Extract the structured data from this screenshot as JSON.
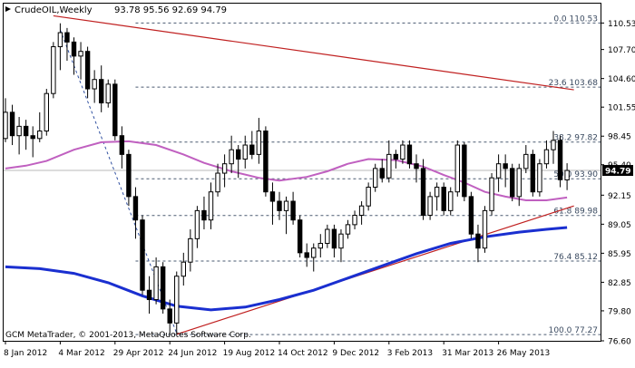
{
  "window": {
    "symbol_label": "CrudeOIL,Weekly",
    "ohlc_readout": "93.78 95.56 92.69 94.79",
    "copyright": "GCM MetaTrader, © 2001-2013, MetaQuotes Software Corp."
  },
  "colors": {
    "background": "#ffffff",
    "candle": "#000000",
    "ma_fast": "#c060c0",
    "ma_slow": "#1a2fd0",
    "trendline": "#c02020",
    "fib_level": "#4a5a70",
    "current_price_bg": "#000000",
    "current_price_fg": "#ffffff"
  },
  "chart_data": {
    "type": "candlestick",
    "symbol": "CrudeOIL",
    "timeframe": "Weekly",
    "y_range": [
      76.6,
      112.6
    ],
    "x_labels": [
      {
        "text": "8 Jan 2012",
        "index": 0
      },
      {
        "text": "4 Mar 2012",
        "index": 8
      },
      {
        "text": "29 Apr 2012",
        "index": 16
      },
      {
        "text": "24 Jun 2012",
        "index": 24
      },
      {
        "text": "19 Aug 2012",
        "index": 32
      },
      {
        "text": "14 Oct 2012",
        "index": 40
      },
      {
        "text": "9 Dec 2012",
        "index": 48
      },
      {
        "text": "3 Feb 2013",
        "index": 56
      },
      {
        "text": "31 Mar 2013",
        "index": 64
      },
      {
        "text": "26 May 2013",
        "index": 72
      }
    ],
    "y_ticks": [
      "110.53",
      "107.70",
      "104.60",
      "101.55",
      "98.45",
      "95.40",
      "92.15",
      "89.05",
      "85.95",
      "82.85",
      "79.80",
      "76.60"
    ],
    "current_price": "94.79",
    "fib_levels": [
      {
        "label": "0.0 110.53",
        "value": 110.53
      },
      {
        "label": "23.6 103.68",
        "value": 103.68
      },
      {
        "label": "38.2 97.82",
        "value": 97.82
      },
      {
        "label": "50.0 93.90",
        "value": 93.9
      },
      {
        "label": "61.8 89.98",
        "value": 89.98
      },
      {
        "label": "76.4 85.12",
        "value": 85.12
      },
      {
        "label": "100.0 77.27",
        "value": 77.27
      }
    ],
    "candles": [
      {
        "o": 98.2,
        "h": 102.5,
        "l": 97.8,
        "c": 101.0
      },
      {
        "o": 101.0,
        "h": 101.8,
        "l": 97.5,
        "c": 98.5
      },
      {
        "o": 98.5,
        "h": 100.5,
        "l": 96.5,
        "c": 99.5
      },
      {
        "o": 99.5,
        "h": 100.2,
        "l": 97.0,
        "c": 98.5
      },
      {
        "o": 98.5,
        "h": 99.5,
        "l": 96.2,
        "c": 98.2
      },
      {
        "o": 98.2,
        "h": 101.0,
        "l": 97.8,
        "c": 99.0
      },
      {
        "o": 99.0,
        "h": 103.5,
        "l": 98.5,
        "c": 103.0
      },
      {
        "o": 103.0,
        "h": 108.5,
        "l": 102.5,
        "c": 108.0
      },
      {
        "o": 108.0,
        "h": 110.5,
        "l": 105.5,
        "c": 109.5
      },
      {
        "o": 109.5,
        "h": 110.0,
        "l": 106.5,
        "c": 108.5
      },
      {
        "o": 108.5,
        "h": 109.0,
        "l": 105.0,
        "c": 107.0
      },
      {
        "o": 107.0,
        "h": 108.5,
        "l": 104.5,
        "c": 107.5
      },
      {
        "o": 107.5,
        "h": 108.0,
        "l": 102.5,
        "c": 103.5
      },
      {
        "o": 103.5,
        "h": 105.5,
        "l": 102.0,
        "c": 104.5
      },
      {
        "o": 104.5,
        "h": 106.0,
        "l": 101.0,
        "c": 102.0
      },
      {
        "o": 102.0,
        "h": 104.5,
        "l": 101.5,
        "c": 104.0
      },
      {
        "o": 104.0,
        "h": 104.5,
        "l": 98.0,
        "c": 98.5
      },
      {
        "o": 98.5,
        "h": 99.5,
        "l": 95.0,
        "c": 96.5
      },
      {
        "o": 96.5,
        "h": 97.0,
        "l": 91.0,
        "c": 92.0
      },
      {
        "o": 92.0,
        "h": 93.0,
        "l": 87.5,
        "c": 89.5
      },
      {
        "o": 89.5,
        "h": 90.0,
        "l": 81.5,
        "c": 82.0
      },
      {
        "o": 82.0,
        "h": 83.5,
        "l": 79.5,
        "c": 81.0
      },
      {
        "o": 81.0,
        "h": 85.5,
        "l": 80.5,
        "c": 84.5
      },
      {
        "o": 84.5,
        "h": 85.0,
        "l": 79.5,
        "c": 80.0
      },
      {
        "o": 80.0,
        "h": 81.0,
        "l": 77.3,
        "c": 78.5
      },
      {
        "o": 78.5,
        "h": 84.0,
        "l": 77.5,
        "c": 83.5
      },
      {
        "o": 83.5,
        "h": 86.0,
        "l": 82.5,
        "c": 85.0
      },
      {
        "o": 85.0,
        "h": 88.5,
        "l": 84.0,
        "c": 87.5
      },
      {
        "o": 87.5,
        "h": 91.0,
        "l": 86.5,
        "c": 90.5
      },
      {
        "o": 90.5,
        "h": 92.0,
        "l": 88.5,
        "c": 89.5
      },
      {
        "o": 89.5,
        "h": 93.5,
        "l": 88.5,
        "c": 92.5
      },
      {
        "o": 92.5,
        "h": 95.5,
        "l": 92.0,
        "c": 94.5
      },
      {
        "o": 94.5,
        "h": 96.5,
        "l": 93.0,
        "c": 95.5
      },
      {
        "o": 95.5,
        "h": 98.5,
        "l": 94.5,
        "c": 97.0
      },
      {
        "o": 97.0,
        "h": 97.5,
        "l": 94.0,
        "c": 96.0
      },
      {
        "o": 96.0,
        "h": 98.5,
        "l": 95.0,
        "c": 97.5
      },
      {
        "o": 97.5,
        "h": 99.0,
        "l": 96.0,
        "c": 96.5
      },
      {
        "o": 96.5,
        "h": 100.4,
        "l": 95.5,
        "c": 99.0
      },
      {
        "o": 99.0,
        "h": 99.5,
        "l": 92.0,
        "c": 92.5
      },
      {
        "o": 92.5,
        "h": 93.5,
        "l": 89.0,
        "c": 91.5
      },
      {
        "o": 91.5,
        "h": 92.5,
        "l": 89.5,
        "c": 90.5
      },
      {
        "o": 90.5,
        "h": 92.0,
        "l": 88.0,
        "c": 91.5
      },
      {
        "o": 91.5,
        "h": 92.5,
        "l": 89.0,
        "c": 89.5
      },
      {
        "o": 89.5,
        "h": 90.0,
        "l": 85.5,
        "c": 86.0
      },
      {
        "o": 86.0,
        "h": 87.0,
        "l": 84.5,
        "c": 85.5
      },
      {
        "o": 85.5,
        "h": 87.0,
        "l": 84.0,
        "c": 86.5
      },
      {
        "o": 86.5,
        "h": 88.0,
        "l": 85.5,
        "c": 87.0
      },
      {
        "o": 87.0,
        "h": 89.0,
        "l": 86.5,
        "c": 88.5
      },
      {
        "o": 88.5,
        "h": 89.0,
        "l": 85.5,
        "c": 86.5
      },
      {
        "o": 86.5,
        "h": 88.5,
        "l": 85.0,
        "c": 88.0
      },
      {
        "o": 88.0,
        "h": 89.5,
        "l": 87.5,
        "c": 89.0
      },
      {
        "o": 89.0,
        "h": 90.5,
        "l": 88.5,
        "c": 90.0
      },
      {
        "o": 90.0,
        "h": 91.5,
        "l": 89.0,
        "c": 91.0
      },
      {
        "o": 91.0,
        "h": 93.5,
        "l": 90.5,
        "c": 93.0
      },
      {
        "o": 93.0,
        "h": 95.5,
        "l": 92.5,
        "c": 95.0
      },
      {
        "o": 95.0,
        "h": 96.0,
        "l": 93.5,
        "c": 94.0
      },
      {
        "o": 94.0,
        "h": 98.0,
        "l": 93.5,
        "c": 96.5
      },
      {
        "o": 96.5,
        "h": 97.0,
        "l": 95.0,
        "c": 96.0
      },
      {
        "o": 96.0,
        "h": 98.0,
        "l": 95.5,
        "c": 97.5
      },
      {
        "o": 97.5,
        "h": 98.0,
        "l": 95.0,
        "c": 95.5
      },
      {
        "o": 95.5,
        "h": 96.5,
        "l": 93.5,
        "c": 95.0
      },
      {
        "o": 95.0,
        "h": 96.0,
        "l": 89.5,
        "c": 90.0
      },
      {
        "o": 90.0,
        "h": 92.5,
        "l": 89.5,
        "c": 92.0
      },
      {
        "o": 92.0,
        "h": 93.5,
        "l": 90.5,
        "c": 93.0
      },
      {
        "o": 93.0,
        "h": 93.5,
        "l": 90.0,
        "c": 90.5
      },
      {
        "o": 90.5,
        "h": 93.0,
        "l": 90.0,
        "c": 92.5
      },
      {
        "o": 92.5,
        "h": 98.0,
        "l": 92.0,
        "c": 97.5
      },
      {
        "o": 97.5,
        "h": 97.8,
        "l": 91.5,
        "c": 92.0
      },
      {
        "o": 92.0,
        "h": 92.5,
        "l": 87.5,
        "c": 88.0
      },
      {
        "o": 88.0,
        "h": 89.0,
        "l": 85.0,
        "c": 86.5
      },
      {
        "o": 86.5,
        "h": 91.0,
        "l": 86.0,
        "c": 90.5
      },
      {
        "o": 90.5,
        "h": 94.5,
        "l": 90.0,
        "c": 94.0
      },
      {
        "o": 94.0,
        "h": 96.5,
        "l": 92.5,
        "c": 95.5
      },
      {
        "o": 95.5,
        "h": 96.5,
        "l": 93.0,
        "c": 95.0
      },
      {
        "o": 95.0,
        "h": 95.5,
        "l": 91.5,
        "c": 92.0
      },
      {
        "o": 92.0,
        "h": 95.5,
        "l": 91.0,
        "c": 95.0
      },
      {
        "o": 95.0,
        "h": 97.5,
        "l": 94.5,
        "c": 96.5
      },
      {
        "o": 96.5,
        "h": 97.0,
        "l": 92.0,
        "c": 92.5
      },
      {
        "o": 92.5,
        "h": 96.0,
        "l": 92.0,
        "c": 95.5
      },
      {
        "o": 95.5,
        "h": 98.0,
        "l": 95.0,
        "c": 97.0
      },
      {
        "o": 97.0,
        "h": 99.0,
        "l": 95.5,
        "c": 98.0
      },
      {
        "o": 98.0,
        "h": 98.5,
        "l": 93.0,
        "c": 93.8
      },
      {
        "o": 93.78,
        "h": 95.56,
        "l": 92.69,
        "c": 94.79
      }
    ],
    "ma_fast": [
      [
        0,
        95.0
      ],
      [
        3,
        95.3
      ],
      [
        6,
        95.8
      ],
      [
        10,
        97.0
      ],
      [
        14,
        97.8
      ],
      [
        18,
        97.9
      ],
      [
        22,
        97.5
      ],
      [
        26,
        96.5
      ],
      [
        29,
        95.6
      ],
      [
        33,
        94.7
      ],
      [
        37,
        94.0
      ],
      [
        40,
        93.7
      ],
      [
        44,
        94.1
      ],
      [
        47,
        94.7
      ],
      [
        50,
        95.5
      ],
      [
        53,
        96.0
      ],
      [
        57,
        95.9
      ],
      [
        61,
        95.2
      ],
      [
        64,
        94.3
      ],
      [
        67,
        93.5
      ],
      [
        70,
        92.5
      ],
      [
        73,
        92.0
      ],
      [
        76,
        91.6
      ],
      [
        79,
        91.6
      ],
      [
        82,
        91.9
      ]
    ],
    "ma_slow": [
      [
        0,
        84.5
      ],
      [
        5,
        84.3
      ],
      [
        10,
        83.8
      ],
      [
        15,
        82.8
      ],
      [
        20,
        81.4
      ],
      [
        25,
        80.3
      ],
      [
        30,
        79.9
      ],
      [
        35,
        80.2
      ],
      [
        40,
        81.0
      ],
      [
        45,
        82.0
      ],
      [
        50,
        83.3
      ],
      [
        55,
        84.6
      ],
      [
        60,
        85.9
      ],
      [
        65,
        87.0
      ],
      [
        70,
        87.7
      ],
      [
        75,
        88.2
      ],
      [
        79,
        88.5
      ],
      [
        82,
        88.7
      ]
    ],
    "resistance_line": [
      [
        7,
        111.3
      ],
      [
        83,
        103.4
      ]
    ],
    "support_line": [
      [
        25,
        77.3
      ],
      [
        83,
        91.0
      ]
    ],
    "fib_diagonal": [
      [
        8,
        109.8
      ],
      [
        25,
        77.4
      ]
    ]
  }
}
